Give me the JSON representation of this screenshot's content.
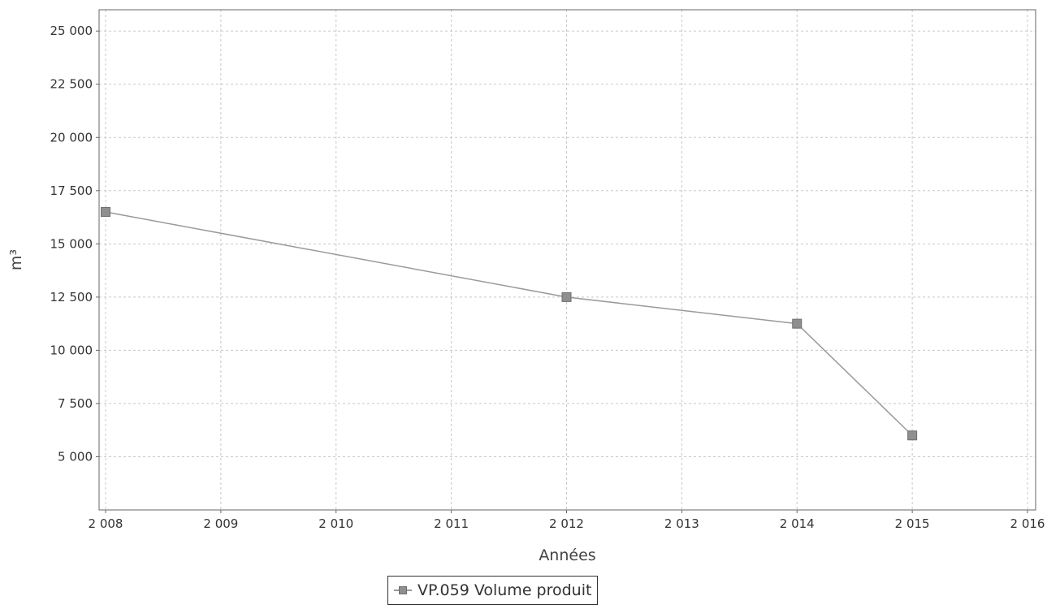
{
  "chart_data": {
    "type": "line",
    "title": "",
    "xlabel": "Années",
    "ylabel": "m³",
    "xlim": [
      2008,
      2016
    ],
    "ylim": [
      2500,
      26000
    ],
    "x_ticks": [
      2008,
      2009,
      2010,
      2011,
      2012,
      2013,
      2014,
      2015,
      2016
    ],
    "x_tick_labels": [
      "2 008",
      "2 009",
      "2 010",
      "2 011",
      "2 012",
      "2 013",
      "2 014",
      "2 015",
      "2 016"
    ],
    "y_ticks": [
      5000,
      7500,
      10000,
      12500,
      15000,
      17500,
      20000,
      22500,
      25000
    ],
    "y_tick_labels": [
      "5 000",
      "7 500",
      "10 000",
      "12 500",
      "15 000",
      "17 500",
      "20 000",
      "22 500",
      "25 000"
    ],
    "grid": true,
    "legend_position": "bottom-center",
    "series": [
      {
        "name": "VP.059 Volume produit",
        "color": "#9a9a9a",
        "marker_color": "#8f8f8f",
        "marker": "square",
        "points": [
          {
            "x": 2008,
            "y": 16500
          },
          {
            "x": 2012,
            "y": 12500
          },
          {
            "x": 2014,
            "y": 11250
          },
          {
            "x": 2015,
            "y": 6000
          }
        ]
      }
    ]
  },
  "legend": {
    "label": "VP.059 Volume produit"
  }
}
